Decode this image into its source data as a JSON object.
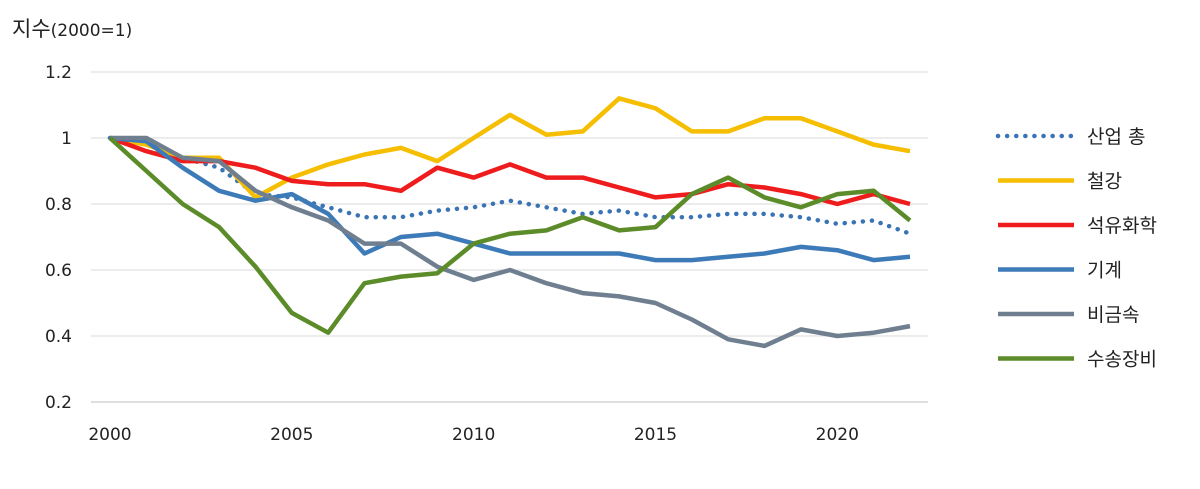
{
  "chart_data": {
    "type": "line",
    "ylabel_main": "지수",
    "ylabel_unit": "(2000=1)",
    "xlabel": "",
    "xlim": [
      2000,
      2022
    ],
    "ylim": [
      0.2,
      1.2
    ],
    "x_ticks": [
      "2000",
      "2005",
      "2010",
      "2015",
      "2020"
    ],
    "y_ticks": [
      "1.2",
      "1",
      "0.8",
      "0.6",
      "0.4",
      "0.2"
    ],
    "grid": true,
    "legend_position": "right",
    "x": [
      2000,
      2001,
      2002,
      2003,
      2004,
      2005,
      2006,
      2007,
      2008,
      2009,
      2010,
      2011,
      2012,
      2013,
      2014,
      2015,
      2016,
      2017,
      2018,
      2019,
      2020,
      2021,
      2022
    ],
    "series": [
      {
        "name": "산업 총",
        "color": "#3a74b5",
        "style": "dotted",
        "values": [
          1.0,
          0.99,
          0.94,
          0.91,
          0.83,
          0.82,
          0.79,
          0.76,
          0.76,
          0.78,
          0.79,
          0.81,
          0.79,
          0.77,
          0.78,
          0.76,
          0.76,
          0.77,
          0.77,
          0.76,
          0.74,
          0.75,
          0.71
        ]
      },
      {
        "name": "철강",
        "color": "#f5be00",
        "style": "solid",
        "values": [
          1.0,
          0.98,
          0.94,
          0.94,
          0.82,
          0.88,
          0.92,
          0.95,
          0.97,
          0.93,
          1.0,
          1.07,
          1.01,
          1.02,
          1.12,
          1.09,
          1.02,
          1.02,
          1.06,
          1.06,
          1.02,
          0.98,
          0.96
        ]
      },
      {
        "name": "석유화학",
        "color": "#ee1c1c",
        "style": "solid",
        "values": [
          1.0,
          0.96,
          0.93,
          0.93,
          0.91,
          0.87,
          0.86,
          0.86,
          0.84,
          0.91,
          0.88,
          0.92,
          0.88,
          0.88,
          0.85,
          0.82,
          0.83,
          0.86,
          0.85,
          0.83,
          0.8,
          0.83,
          0.8
        ]
      },
      {
        "name": "기계",
        "color": "#3d7ab8",
        "style": "solid",
        "values": [
          1.0,
          0.99,
          0.91,
          0.84,
          0.81,
          0.83,
          0.77,
          0.65,
          0.7,
          0.71,
          0.68,
          0.65,
          0.65,
          0.65,
          0.65,
          0.63,
          0.63,
          0.64,
          0.65,
          0.67,
          0.66,
          0.63,
          0.64
        ]
      },
      {
        "name": "비금속",
        "color": "#6f7f8f",
        "style": "solid",
        "values": [
          1.0,
          1.0,
          0.94,
          0.93,
          0.84,
          0.79,
          0.75,
          0.68,
          0.68,
          0.61,
          0.57,
          0.6,
          0.56,
          0.53,
          0.52,
          0.5,
          0.45,
          0.39,
          0.37,
          0.42,
          0.4,
          0.41,
          0.43
        ]
      },
      {
        "name": "수송장비",
        "color": "#5c8c2a",
        "style": "solid",
        "values": [
          1.0,
          0.9,
          0.8,
          0.73,
          0.61,
          0.47,
          0.41,
          0.56,
          0.58,
          0.59,
          0.68,
          0.71,
          0.72,
          0.76,
          0.72,
          0.73,
          0.83,
          0.88,
          0.82,
          0.79,
          0.83,
          0.84,
          0.75
        ]
      }
    ]
  }
}
